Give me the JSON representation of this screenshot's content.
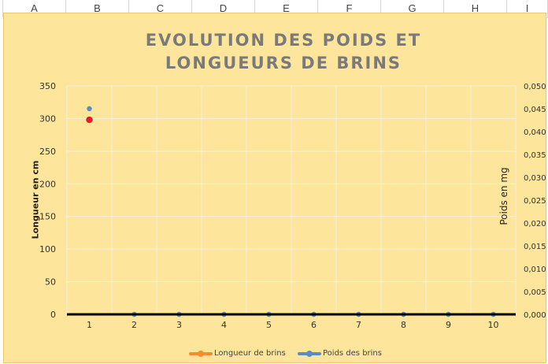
{
  "spreadsheet": {
    "column_headers": [
      "A",
      "B",
      "C",
      "D",
      "E",
      "F",
      "G",
      "H",
      "I"
    ]
  },
  "chart_data": {
    "type": "line",
    "title": "EVOLUTION DES POIDS ET LONGUEURS DE BRINS",
    "xlabel": "",
    "ylabel": "Longueur en cm",
    "y2label": "Poids en mg",
    "categories": [
      "1",
      "2",
      "3",
      "4",
      "5",
      "6",
      "7",
      "8",
      "9",
      "10"
    ],
    "ylim": [
      0,
      350
    ],
    "y_ticks": [
      "0",
      "50",
      "100",
      "150",
      "200",
      "250",
      "300",
      "350"
    ],
    "y2lim": [
      0,
      0.05
    ],
    "y2_ticks": [
      "0,000",
      "0,005",
      "0,010",
      "0,015",
      "0,020",
      "0,025",
      "0,030",
      "0,035",
      "0,040",
      "0,045",
      "0,050"
    ],
    "series": [
      {
        "name": "Longueur de brins",
        "axis": "left",
        "color": "#f28e2b",
        "values": [
          298,
          0,
          0,
          0,
          0,
          0,
          0,
          0,
          0,
          0
        ]
      },
      {
        "name": "Poids des brins",
        "axis": "right",
        "color": "#5b8cc4",
        "values": [
          0.045,
          0,
          0,
          0,
          0,
          0,
          0,
          0,
          0,
          0
        ]
      }
    ],
    "grid": true,
    "legend_position": "bottom",
    "highlight_point_color": "#e02020"
  }
}
